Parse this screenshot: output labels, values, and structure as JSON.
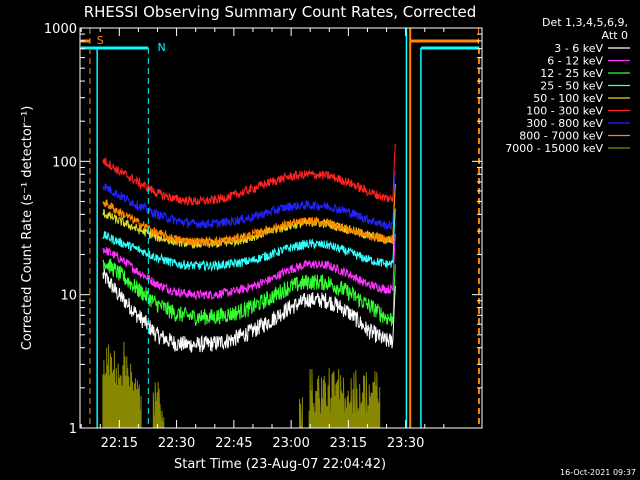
{
  "chart_data": {
    "type": "line",
    "title": "RHESSI Observing Summary Count Rates, Corrected",
    "xlabel": "Start Time (23-Aug-07 22:04:42)",
    "ylabel": "Corrected Count Rate (s⁻¹ detector⁻¹)",
    "y_scale": "log",
    "ylim": [
      1,
      1000
    ],
    "xlim_minutes_from_start": [
      0,
      105.3
    ],
    "x_ticks": [
      "22:15",
      "22:30",
      "22:45",
      "23:00",
      "23:15",
      "23:30"
    ],
    "y_ticks": [
      "1",
      "10",
      "100",
      "1000"
    ],
    "legend_header": [
      "Det 1,3,4,5,6,9,",
      "Att 0"
    ],
    "legend_position": "top-right",
    "footer_timestamp": "16-Oct-2021 09:37",
    "x_minutes": [
      6,
      10,
      15,
      20,
      25,
      30,
      35,
      40,
      45,
      50,
      55,
      60,
      65,
      70,
      75,
      80,
      82
    ],
    "series": [
      {
        "name": "3 - 6 keV",
        "color": "#ffffff",
        "values": [
          14,
          10,
          7,
          5,
          4.3,
          4.2,
          4.3,
          4.6,
          5.3,
          6.4,
          8,
          9.2,
          9,
          7.5,
          5.5,
          4.5,
          4.5
        ]
      },
      {
        "name": "6 - 12 keV",
        "color": "#ff33ff",
        "values": [
          22,
          19,
          15,
          12,
          10.5,
          10,
          10,
          10.5,
          11.5,
          13,
          15.5,
          17,
          16.5,
          14.5,
          12,
          11,
          11
        ]
      },
      {
        "name": "12 - 25 keV",
        "color": "#33ff33",
        "values": [
          18,
          14.5,
          11,
          8.5,
          7.2,
          6.8,
          6.8,
          7.2,
          8,
          9.5,
          11.5,
          12.5,
          12.3,
          10.5,
          8.5,
          6.8,
          6.5
        ]
      },
      {
        "name": "25 - 50 keV",
        "color": "#33ffff",
        "values": [
          28,
          25,
          22,
          19,
          17,
          16.5,
          16.5,
          17,
          18,
          20,
          22.5,
          24,
          23.5,
          21,
          18.5,
          17,
          17
        ]
      },
      {
        "name": "50 - 100 keV",
        "color": "#dddd22",
        "values": [
          41,
          36,
          31,
          27,
          25,
          24,
          24,
          25,
          27,
          30,
          33,
          35,
          34,
          31,
          28,
          26,
          26
        ]
      },
      {
        "name": "100 - 300 keV",
        "color": "#ff2222",
        "values": [
          102,
          85,
          70,
          58,
          52,
          50,
          51,
          55,
          62,
          70,
          77,
          80,
          78,
          70,
          60,
          53,
          52
        ]
      },
      {
        "name": "300 - 800 keV",
        "color": "#2222ff",
        "values": [
          66,
          56,
          47,
          40,
          36,
          34,
          34,
          35.5,
          38,
          42,
          46,
          47,
          46,
          42,
          37,
          33,
          33
        ]
      },
      {
        "name": "800 - 7000 keV",
        "color": "#ff8800",
        "values": [
          50,
          42,
          35,
          29,
          26,
          25,
          25,
          26,
          28,
          31,
          34,
          35.5,
          34.5,
          31,
          28,
          26,
          26
        ]
      },
      {
        "name": "7000 - 15000 keV",
        "color": "#888800",
        "values": []
      }
    ],
    "flags": [
      {
        "label": "S",
        "color": "#ff8800"
      },
      {
        "label": "N",
        "color": "#00ffff"
      }
    ]
  }
}
